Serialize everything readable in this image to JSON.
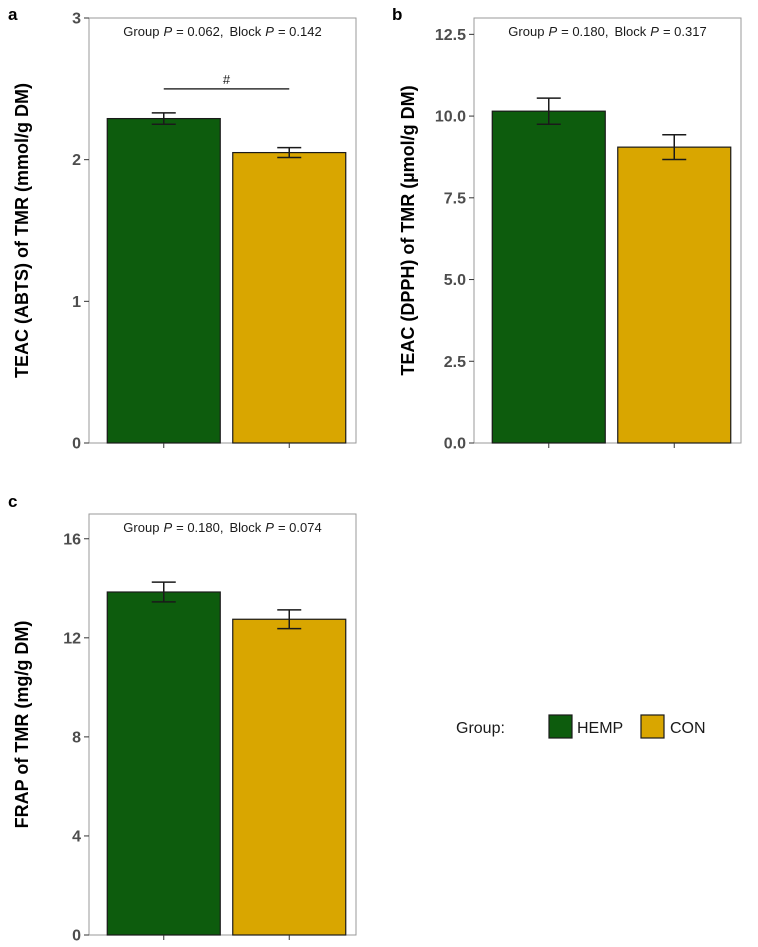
{
  "legend": {
    "title": "Group:",
    "entries": [
      {
        "label": "HEMP",
        "color": "#0d5c0d"
      },
      {
        "label": "CON",
        "color": "#d9a600"
      }
    ]
  },
  "chart_data": [
    {
      "panel": "a",
      "type": "bar",
      "categories": [
        "HEMP",
        "CON"
      ],
      "values": [
        2.29,
        2.05
      ],
      "errors": [
        0.04,
        0.035
      ],
      "ylabel": "TEAC (ABTS) of TMR (mmol/g DM)",
      "ylim": [
        0,
        3
      ],
      "yticks": [
        "0",
        "1",
        "2",
        "3"
      ],
      "ytick_values": [
        0,
        1,
        2,
        3
      ],
      "stats": {
        "group_prefix": "Group",
        "group_p": "= 0.062,",
        "block_prefix": "Block",
        "block_p": "= 0.142"
      },
      "significance": {
        "symbol": "#",
        "value": 2.5
      }
    },
    {
      "panel": "b",
      "type": "bar",
      "categories": [
        "HEMP",
        "CON"
      ],
      "values": [
        10.15,
        9.05
      ],
      "errors": [
        0.4,
        0.38
      ],
      "ylabel": "TEAC (DPPH) of TMR (µmol/g DM)",
      "ylim": [
        0,
        13
      ],
      "yticks": [
        "0.0",
        "2.5",
        "5.0",
        "7.5",
        "10.0",
        "12.5"
      ],
      "ytick_values": [
        0,
        2.5,
        5,
        7.5,
        10,
        12.5
      ],
      "stats": {
        "group_prefix": "Group",
        "group_p": "= 0.180,",
        "block_prefix": "Block",
        "block_p": "= 0.317"
      }
    },
    {
      "panel": "c",
      "type": "bar",
      "categories": [
        "HEMP",
        "CON"
      ],
      "values": [
        13.85,
        12.75
      ],
      "errors": [
        0.4,
        0.38
      ],
      "ylabel": "FRAP of TMR (mg/g DM)",
      "ylim": [
        0,
        17
      ],
      "yticks": [
        "0",
        "4",
        "8",
        "12",
        "16"
      ],
      "ytick_values": [
        0,
        4,
        8,
        12,
        16
      ],
      "stats": {
        "group_prefix": "Group",
        "group_p": "= 0.180,",
        "block_prefix": "Block",
        "block_p": "= 0.074"
      }
    }
  ]
}
